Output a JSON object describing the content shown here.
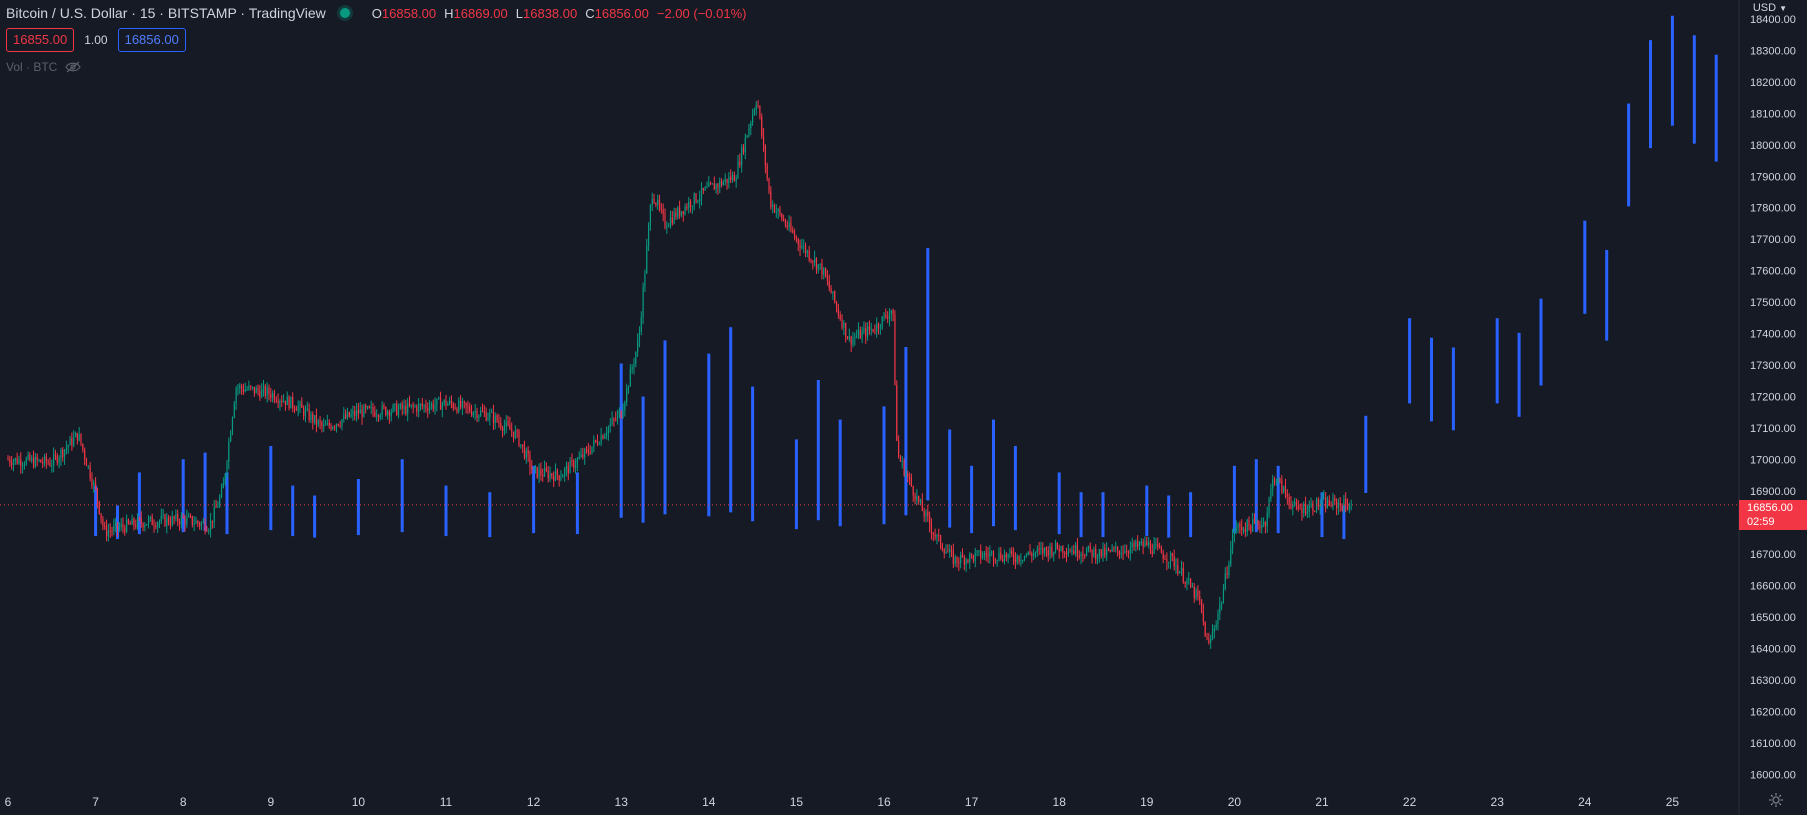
{
  "header": {
    "symbol_title": "Bitcoin / U.S. Dollar · 15 · BITSTAMP · TradingView",
    "ohlc": [
      {
        "key": "O",
        "value": "16858.00"
      },
      {
        "key": "H",
        "value": "16869.00"
      },
      {
        "key": "L",
        "value": "16838.00"
      },
      {
        "key": "C",
        "value": "16856.00"
      }
    ],
    "change": "−2.00 (−0.01%)",
    "bid": "16855.00",
    "spread": "1.00",
    "ask": "16856.00",
    "volume_label": "Vol · BTC"
  },
  "axis": {
    "currency": "USD",
    "last_price": "16856.00",
    "countdown": "02:59"
  },
  "colors": {
    "background": "#161a25",
    "up": "#089981",
    "down": "#f23645",
    "volume_bar": "#2962ff",
    "text": "#d1d4dc",
    "muted": "#5d606b"
  },
  "chart_data": {
    "type": "candlestick",
    "symbol": "BTC/USD",
    "exchange": "BITSTAMP",
    "interval": "15",
    "ylim": [
      15950,
      18460
    ],
    "y_ticks": [
      16000,
      16100,
      16200,
      16300,
      16400,
      16500,
      16600,
      16700,
      16800,
      16900,
      17000,
      17100,
      17200,
      17300,
      17400,
      17500,
      17600,
      17700,
      17800,
      17900,
      18000,
      18100,
      18200,
      18300,
      18400
    ],
    "x_ticks": [
      "6",
      "7",
      "8",
      "9",
      "10",
      "11",
      "12",
      "13",
      "14",
      "15",
      "16",
      "17",
      "18",
      "19",
      "20",
      "21",
      "22",
      "23",
      "24",
      "25"
    ],
    "grid": false,
    "close_path": [
      {
        "day": 6.0,
        "price": 17000
      },
      {
        "day": 6.5,
        "price": 16990
      },
      {
        "day": 6.8,
        "price": 17080
      },
      {
        "day": 7.0,
        "price": 16900
      },
      {
        "day": 7.1,
        "price": 16770
      },
      {
        "day": 7.5,
        "price": 16800
      },
      {
        "day": 8.0,
        "price": 16810
      },
      {
        "day": 8.3,
        "price": 16790
      },
      {
        "day": 8.45,
        "price": 16900
      },
      {
        "day": 8.6,
        "price": 17230
      },
      {
        "day": 9.0,
        "price": 17210
      },
      {
        "day": 9.3,
        "price": 17170
      },
      {
        "day": 9.6,
        "price": 17100
      },
      {
        "day": 10.0,
        "price": 17150
      },
      {
        "day": 10.5,
        "price": 17160
      },
      {
        "day": 11.0,
        "price": 17180
      },
      {
        "day": 11.5,
        "price": 17140
      },
      {
        "day": 11.8,
        "price": 17080
      },
      {
        "day": 12.0,
        "price": 16960
      },
      {
        "day": 12.3,
        "price": 16950
      },
      {
        "day": 12.6,
        "price": 17020
      },
      {
        "day": 13.0,
        "price": 17150
      },
      {
        "day": 13.2,
        "price": 17380
      },
      {
        "day": 13.35,
        "price": 17850
      },
      {
        "day": 13.5,
        "price": 17750
      },
      {
        "day": 13.8,
        "price": 17820
      },
      {
        "day": 14.0,
        "price": 17860
      },
      {
        "day": 14.3,
        "price": 17900
      },
      {
        "day": 14.55,
        "price": 18150
      },
      {
        "day": 14.7,
        "price": 17820
      },
      {
        "day": 15.0,
        "price": 17700
      },
      {
        "day": 15.3,
        "price": 17600
      },
      {
        "day": 15.6,
        "price": 17380
      },
      {
        "day": 15.9,
        "price": 17420
      },
      {
        "day": 16.1,
        "price": 17480
      },
      {
        "day": 16.15,
        "price": 17020
      },
      {
        "day": 16.4,
        "price": 16860
      },
      {
        "day": 16.6,
        "price": 16750
      },
      {
        "day": 16.8,
        "price": 16680
      },
      {
        "day": 17.2,
        "price": 16700
      },
      {
        "day": 17.5,
        "price": 16690
      },
      {
        "day": 18.0,
        "price": 16720
      },
      {
        "day": 18.5,
        "price": 16700
      },
      {
        "day": 19.0,
        "price": 16730
      },
      {
        "day": 19.3,
        "price": 16680
      },
      {
        "day": 19.6,
        "price": 16550
      },
      {
        "day": 19.7,
        "price": 16400
      },
      {
        "day": 19.85,
        "price": 16550
      },
      {
        "day": 20.0,
        "price": 16780
      },
      {
        "day": 20.35,
        "price": 16800
      },
      {
        "day": 20.45,
        "price": 16950
      },
      {
        "day": 20.7,
        "price": 16840
      },
      {
        "day": 21.0,
        "price": 16860
      },
      {
        "day": 21.35,
        "price": 16856
      }
    ],
    "volume_bars": [
      {
        "day": 7.0,
        "value": 0.18
      },
      {
        "day": 7.25,
        "value": 0.12
      },
      {
        "day": 7.5,
        "value": 0.22
      },
      {
        "day": 8.0,
        "value": 0.26
      },
      {
        "day": 8.25,
        "value": 0.28
      },
      {
        "day": 8.5,
        "value": 0.22
      },
      {
        "day": 9.0,
        "value": 0.3
      },
      {
        "day": 9.25,
        "value": 0.18
      },
      {
        "day": 9.5,
        "value": 0.15
      },
      {
        "day": 10.0,
        "value": 0.2
      },
      {
        "day": 10.5,
        "value": 0.26
      },
      {
        "day": 11.0,
        "value": 0.18
      },
      {
        "day": 11.5,
        "value": 0.16
      },
      {
        "day": 12.0,
        "value": 0.24
      },
      {
        "day": 12.5,
        "value": 0.22
      },
      {
        "day": 13.0,
        "value": 0.55
      },
      {
        "day": 13.25,
        "value": 0.45
      },
      {
        "day": 13.5,
        "value": 0.62
      },
      {
        "day": 14.0,
        "value": 0.58
      },
      {
        "day": 14.25,
        "value": 0.66
      },
      {
        "day": 14.5,
        "value": 0.48
      },
      {
        "day": 15.0,
        "value": 0.32
      },
      {
        "day": 15.25,
        "value": 0.5
      },
      {
        "day": 15.5,
        "value": 0.38
      },
      {
        "day": 16.0,
        "value": 0.42
      },
      {
        "day": 16.25,
        "value": 0.6
      },
      {
        "day": 16.5,
        "value": 0.9
      },
      {
        "day": 16.75,
        "value": 0.35
      },
      {
        "day": 17.0,
        "value": 0.24
      },
      {
        "day": 17.25,
        "value": 0.38
      },
      {
        "day": 17.5,
        "value": 0.3
      },
      {
        "day": 18.0,
        "value": 0.22
      },
      {
        "day": 18.25,
        "value": 0.16
      },
      {
        "day": 18.5,
        "value": 0.16
      },
      {
        "day": 19.0,
        "value": 0.18
      },
      {
        "day": 19.25,
        "value": 0.15
      },
      {
        "day": 19.5,
        "value": 0.16
      },
      {
        "day": 20.0,
        "value": 0.24
      },
      {
        "day": 20.25,
        "value": 0.26
      },
      {
        "day": 20.5,
        "value": 0.24
      },
      {
        "day": 21.0,
        "value": 0.16
      },
      {
        "day": 21.25,
        "value": 0.12
      },
      {
        "day": 21.5,
        "value": 0.18
      },
      {
        "day": 22.0,
        "value": 0.38
      },
      {
        "day": 22.25,
        "value": 0.34
      },
      {
        "day": 22.5,
        "value": 0.32
      },
      {
        "day": 23.0,
        "value": 0.38
      },
      {
        "day": 23.25,
        "value": 0.35
      },
      {
        "day": 23.5,
        "value": 0.42
      },
      {
        "day": 24.0,
        "value": 0.58
      },
      {
        "day": 24.25,
        "value": 0.52
      },
      {
        "day": 24.5,
        "value": 0.82
      },
      {
        "day": 24.75,
        "value": 0.95
      },
      {
        "day": 25.0,
        "value": 1.0
      },
      {
        "day": 25.25,
        "value": 0.96
      },
      {
        "day": 25.5,
        "value": 0.92
      }
    ]
  }
}
